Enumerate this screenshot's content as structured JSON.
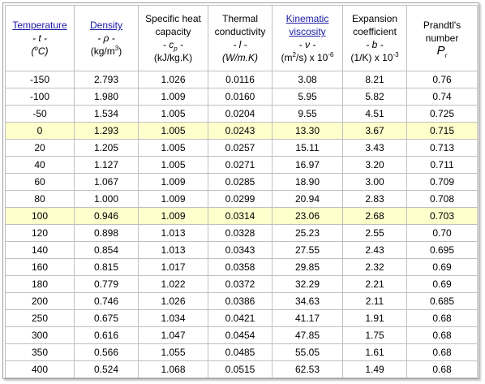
{
  "header": [
    [
      "Temperature",
      "- t -",
      "(",
      "o",
      "C)"
    ],
    [
      "Density",
      "- ρ -",
      "(kg/m",
      "3",
      ")"
    ],
    [
      "Specific heat",
      "capacity",
      "- c",
      "p",
      " -",
      "(kJ/kg.K)"
    ],
    [
      "Thermal",
      "conductivity",
      "- l -",
      "(W/m.K)"
    ],
    [
      "Kinematic",
      "viscosity",
      "- ν -",
      "(m",
      "2",
      "/s) x 10",
      "-6"
    ],
    [
      "Expansion",
      "coefficient",
      "- b -",
      "(1/K) x 10",
      "-3"
    ],
    [
      "Prandtl's",
      "number",
      "P",
      "r"
    ]
  ],
  "rows": [
    [
      "-150",
      "2.793",
      "1.026",
      "0.0116",
      "3.08",
      "8.21",
      "0.76"
    ],
    [
      "-100",
      "1.980",
      "1.009",
      "0.0160",
      "5.95",
      "5.82",
      "0.74"
    ],
    [
      "-50",
      "1.534",
      "1.005",
      "0.0204",
      "9.55",
      "4.51",
      "0.725"
    ],
    [
      "0",
      "1.293",
      "1.005",
      "0.0243",
      "13.30",
      "3.67",
      "0.715"
    ],
    [
      "20",
      "1.205",
      "1.005",
      "0.0257",
      "15.11",
      "3.43",
      "0.713"
    ],
    [
      "40",
      "1.127",
      "1.005",
      "0.0271",
      "16.97",
      "3.20",
      "0.711"
    ],
    [
      "60",
      "1.067",
      "1.009",
      "0.0285",
      "18.90",
      "3.00",
      "0.709"
    ],
    [
      "80",
      "1.000",
      "1.009",
      "0.0299",
      "20.94",
      "2.83",
      "0.708"
    ],
    [
      "100",
      "0.946",
      "1.009",
      "0.0314",
      "23.06",
      "2.68",
      "0.703"
    ],
    [
      "120",
      "0.898",
      "1.013",
      "0.0328",
      "25.23",
      "2.55",
      "0.70"
    ],
    [
      "140",
      "0.854",
      "1.013",
      "0.0343",
      "27.55",
      "2.43",
      "0.695"
    ],
    [
      "160",
      "0.815",
      "1.017",
      "0.0358",
      "29.85",
      "2.32",
      "0.69"
    ],
    [
      "180",
      "0.779",
      "1.022",
      "0.0372",
      "32.29",
      "2.21",
      "0.69"
    ],
    [
      "200",
      "0.746",
      "1.026",
      "0.0386",
      "34.63",
      "2.11",
      "0.685"
    ],
    [
      "250",
      "0.675",
      "1.034",
      "0.0421",
      "41.17",
      "1.91",
      "0.68"
    ],
    [
      "300",
      "0.616",
      "1.047",
      "0.0454",
      "47.85",
      "1.75",
      "0.68"
    ],
    [
      "350",
      "0.566",
      "1.055",
      "0.0485",
      "55.05",
      "1.61",
      "0.68"
    ],
    [
      "400",
      "0.524",
      "1.068",
      "0.0515",
      "62.53",
      "1.49",
      "0.68"
    ]
  ]
}
